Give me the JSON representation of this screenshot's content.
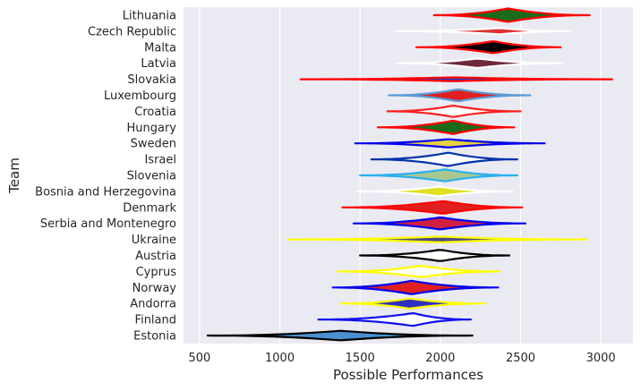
{
  "chart_data": {
    "type": "violin",
    "orientation": "horizontal",
    "xlabel": "Possible Performances",
    "ylabel": "Team",
    "xlim": [
      400,
      3200
    ],
    "xticks": [
      500,
      1000,
      1500,
      2000,
      2500,
      3000
    ],
    "grid": true,
    "background": "#eaeaf2",
    "teams": [
      {
        "name": "Lithuania",
        "min": 1960,
        "max": 2930,
        "center": 2420,
        "spread": 0.42,
        "fill": "#1a6b1a",
        "edge": "#ff0000"
      },
      {
        "name": "Czech Republic",
        "min": 1730,
        "max": 2810,
        "center": 2370,
        "spread": 0.2,
        "fill": "#e03030",
        "edge": "#ffffff"
      },
      {
        "name": "Malta",
        "min": 1850,
        "max": 2750,
        "center": 2330,
        "spread": 0.38,
        "fill": "#000000",
        "edge": "#ff0000"
      },
      {
        "name": "Latvia",
        "min": 1730,
        "max": 2760,
        "center": 2230,
        "spread": 0.3,
        "fill": "#6e2a3c",
        "edge": "#ffffff"
      },
      {
        "name": "Slovakia",
        "min": 1130,
        "max": 3070,
        "center": 2080,
        "spread": 0.12,
        "fill": "#2a3ab8",
        "edge": "#ff0000"
      },
      {
        "name": "Luxembourg",
        "min": 1680,
        "max": 2560,
        "center": 2110,
        "spread": 0.38,
        "fill": "#e02020",
        "edge": "#5a9bd5"
      },
      {
        "name": "Croatia",
        "min": 1670,
        "max": 2500,
        "center": 2080,
        "spread": 0.36,
        "fill": "#ffffff",
        "edge": "#ff2020"
      },
      {
        "name": "Hungary",
        "min": 1610,
        "max": 2460,
        "center": 2080,
        "spread": 0.42,
        "fill": "#1a6b1a",
        "edge": "#ff0000"
      },
      {
        "name": "Sweden",
        "min": 1470,
        "max": 2650,
        "center": 2050,
        "spread": 0.26,
        "fill": "#e8d040",
        "edge": "#0000ee"
      },
      {
        "name": "Israel",
        "min": 1570,
        "max": 2480,
        "center": 2050,
        "spread": 0.42,
        "fill": "#ffffff",
        "edge": "#0033aa"
      },
      {
        "name": "Slovenia",
        "min": 1500,
        "max": 2480,
        "center": 2030,
        "spread": 0.38,
        "fill": "#a8c890",
        "edge": "#2ab0ee"
      },
      {
        "name": "Bosnia and Herzegovina",
        "min": 1480,
        "max": 2450,
        "center": 1990,
        "spread": 0.3,
        "fill": "#e0e020",
        "edge": "#ffffff"
      },
      {
        "name": "Denmark",
        "min": 1390,
        "max": 2510,
        "center": 2020,
        "spread": 0.4,
        "fill": "#e02020",
        "edge": "#ff0000"
      },
      {
        "name": "Serbia and Montenegro",
        "min": 1460,
        "max": 2530,
        "center": 2000,
        "spread": 0.38,
        "fill": "#d02040",
        "edge": "#0000ee"
      },
      {
        "name": "Ukraine",
        "min": 1050,
        "max": 2910,
        "center": 2000,
        "spread": 0.18,
        "fill": "#4a4a8a",
        "edge": "#ffff00"
      },
      {
        "name": "Austria",
        "min": 1500,
        "max": 2430,
        "center": 2000,
        "spread": 0.36,
        "fill": "#ffffff",
        "edge": "#000000"
      },
      {
        "name": "Cyprus",
        "min": 1360,
        "max": 2370,
        "center": 1880,
        "spread": 0.36,
        "fill": "#ffffff",
        "edge": "#ffff00"
      },
      {
        "name": "Norway",
        "min": 1330,
        "max": 2360,
        "center": 1820,
        "spread": 0.42,
        "fill": "#e02020",
        "edge": "#0000ee"
      },
      {
        "name": "Andorra",
        "min": 1380,
        "max": 2280,
        "center": 1810,
        "spread": 0.32,
        "fill": "#3030c0",
        "edge": "#ffff00"
      },
      {
        "name": "Finland",
        "min": 1240,
        "max": 2190,
        "center": 1830,
        "spread": 0.4,
        "fill": "#ffffff",
        "edge": "#1010ee"
      },
      {
        "name": "Estonia",
        "min": 550,
        "max": 2200,
        "center": 1380,
        "spread": 0.3,
        "fill": "#4a90d0",
        "edge": "#000000"
      }
    ]
  }
}
